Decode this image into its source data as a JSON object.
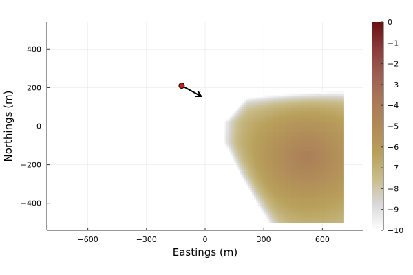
{
  "chart_data": {
    "type": "heatmap",
    "xlabel": "Eastings (m)",
    "ylabel": "Northings (m)",
    "xlim": [
      -810,
      810
    ],
    "ylim": [
      -540,
      540
    ],
    "x_ticks": [
      -600,
      -300,
      0,
      300,
      600
    ],
    "x_tick_labels": [
      "−600",
      "−300",
      "0",
      "300",
      "600"
    ],
    "y_ticks": [
      -400,
      -200,
      0,
      200,
      400
    ],
    "y_tick_labels": [
      "−400",
      "−200",
      "0",
      "200",
      "400"
    ],
    "grid": true,
    "colorbar": {
      "min": -10,
      "max": 0,
      "ticks": [
        0,
        -1,
        -2,
        -3,
        -4,
        -5,
        -6,
        -7,
        -8,
        -9,
        -10
      ],
      "tick_labels": [
        "0",
        "−1",
        "−2",
        "−3",
        "−4",
        "−5",
        "−6",
        "−7",
        "−8",
        "−9",
        "−10"
      ],
      "colors": [
        "#ffffff",
        "#d8d8d8",
        "#c8bc8a",
        "#b8a05a",
        "#b08a58",
        "#a87858",
        "#9c5e52",
        "#8a3a3a",
        "#6a1010"
      ]
    },
    "field": {
      "x_range": [
        90,
        710
      ],
      "y_range": [
        -500,
        180
      ],
      "description_values": "log-scale field, about -9 at the plume edge rising to about -4 near (500,-150)"
    },
    "source_point": {
      "x": -120,
      "y": 210,
      "color": "#cc1a1a"
    },
    "direction_arrow": {
      "from": [
        -120,
        210
      ],
      "to": [
        -20,
        155
      ]
    }
  }
}
